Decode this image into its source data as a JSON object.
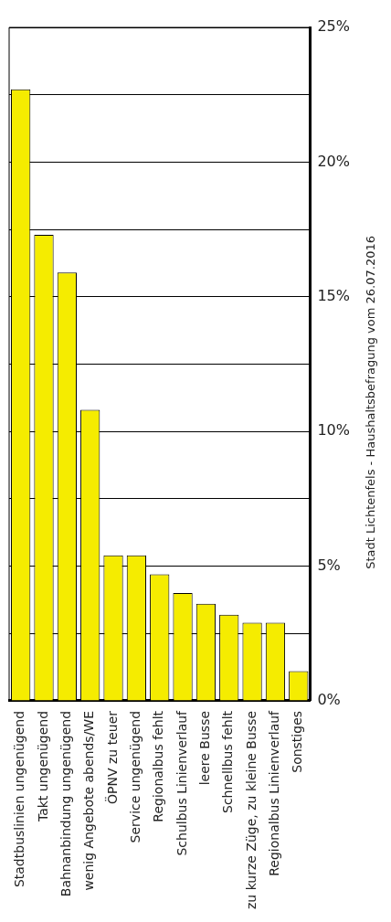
{
  "chart_data": {
    "type": "bar",
    "categories": [
      "Stadtbuslinien ungenügend",
      "Takt ungenügend",
      "Bahnanbindung ungenügend",
      "wenig Angebote abends/WE",
      "ÖPNV zu teuer",
      "Service ungenügend",
      "Regionalbus fehlt",
      "Schulbus Linienverlauf",
      "leere Busse",
      "Schnellbus fehlt",
      "zu kurze Züge, zu kleine Busse",
      "Regionalbus Linienverlauf",
      "Sonstiges"
    ],
    "values": [
      22.7,
      17.3,
      15.9,
      10.8,
      5.4,
      5.4,
      4.7,
      4.0,
      3.6,
      3.2,
      2.9,
      2.9,
      1.1
    ],
    "color": "#f5ec00",
    "ylim": [
      0,
      25
    ],
    "yticks": [
      {
        "value": 0,
        "label": "0%"
      },
      {
        "value": 2.5,
        "label": null
      },
      {
        "value": 5,
        "label": "5%"
      },
      {
        "value": 7.5,
        "label": null
      },
      {
        "value": 10,
        "label": "10%"
      },
      {
        "value": 12.5,
        "label": null
      },
      {
        "value": 15,
        "label": "15%"
      },
      {
        "value": 17.5,
        "label": null
      },
      {
        "value": 20,
        "label": "20%"
      },
      {
        "value": 22.5,
        "label": null
      },
      {
        "value": 25,
        "label": "25%"
      }
    ],
    "grid": "y",
    "legend": false,
    "annotations": [
      "Stadt Lichtenfels - Haushaltsbefragung vom 26.07.2016"
    ]
  }
}
